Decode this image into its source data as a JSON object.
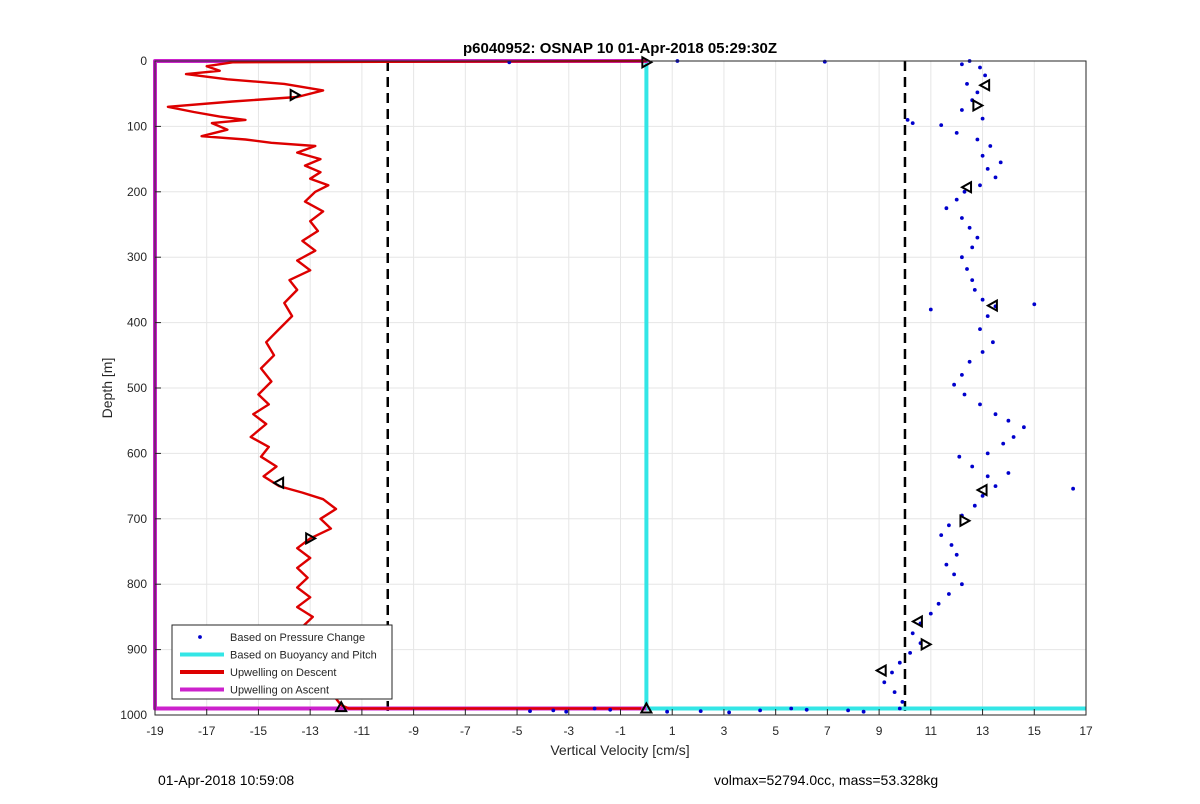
{
  "chart_data": {
    "type": "scatter",
    "title": "p6040952: OSNAP 10 01-Apr-2018 05:29:30Z",
    "xlabel": "Vertical Velocity [cm/s]",
    "ylabel": "Depth [m]",
    "xlim": [
      -19,
      17
    ],
    "ylim": [
      0,
      1000
    ],
    "y_reversed": true,
    "grid": true,
    "legend_position": "bottom-left",
    "xticks": [
      "-19",
      "-17",
      "-15",
      "-13",
      "-11",
      "-9",
      "-7",
      "-5",
      "-3",
      "-1",
      "1",
      "3",
      "5",
      "7",
      "9",
      "11",
      "13",
      "15",
      "17"
    ],
    "yticks": [
      "0",
      "100",
      "200",
      "300",
      "400",
      "500",
      "600",
      "700",
      "800",
      "900",
      "1000"
    ],
    "reference_lines": [
      {
        "x": -10,
        "style": "dashed",
        "color": "#000000"
      },
      {
        "x": 10,
        "style": "dashed",
        "color": "#000000"
      }
    ],
    "series": [
      {
        "name": "Based on Pressure Change",
        "kind": "points",
        "color": "#0000cc",
        "points": [
          [
            12.5,
            0
          ],
          [
            12.2,
            5
          ],
          [
            12.9,
            10
          ],
          [
            13.1,
            22
          ],
          [
            12.4,
            35
          ],
          [
            12.8,
            48
          ],
          [
            12.6,
            60
          ],
          [
            12.2,
            75
          ],
          [
            13.0,
            88
          ],
          [
            10.1,
            90
          ],
          [
            11.4,
            98
          ],
          [
            12.0,
            110
          ],
          [
            12.8,
            120
          ],
          [
            13.3,
            130
          ],
          [
            13.0,
            145
          ],
          [
            13.7,
            155
          ],
          [
            13.2,
            165
          ],
          [
            13.5,
            178
          ],
          [
            12.9,
            190
          ],
          [
            12.3,
            200
          ],
          [
            12.0,
            212
          ],
          [
            11.6,
            225
          ],
          [
            12.2,
            240
          ],
          [
            12.5,
            255
          ],
          [
            12.8,
            270
          ],
          [
            12.6,
            285
          ],
          [
            12.2,
            300
          ],
          [
            12.4,
            318
          ],
          [
            12.6,
            335
          ],
          [
            12.7,
            350
          ],
          [
            13.0,
            365
          ],
          [
            13.5,
            375
          ],
          [
            13.2,
            390
          ],
          [
            12.9,
            410
          ],
          [
            13.4,
            430
          ],
          [
            13.0,
            445
          ],
          [
            12.5,
            460
          ],
          [
            12.2,
            480
          ],
          [
            11.9,
            495
          ],
          [
            12.3,
            510
          ],
          [
            12.9,
            525
          ],
          [
            13.5,
            540
          ],
          [
            14.0,
            550
          ],
          [
            14.6,
            560
          ],
          [
            14.2,
            575
          ],
          [
            13.8,
            585
          ],
          [
            13.2,
            600
          ],
          [
            12.1,
            605
          ],
          [
            12.6,
            620
          ],
          [
            13.2,
            635
          ],
          [
            13.5,
            650
          ],
          [
            13.0,
            665
          ],
          [
            12.7,
            680
          ],
          [
            12.2,
            695
          ],
          [
            11.7,
            710
          ],
          [
            11.4,
            725
          ],
          [
            11.8,
            740
          ],
          [
            12.0,
            755
          ],
          [
            11.6,
            770
          ],
          [
            11.9,
            785
          ],
          [
            12.2,
            800
          ],
          [
            11.7,
            815
          ],
          [
            11.3,
            830
          ],
          [
            11.0,
            845
          ],
          [
            10.6,
            860
          ],
          [
            10.3,
            875
          ],
          [
            10.6,
            890
          ],
          [
            10.2,
            905
          ],
          [
            9.8,
            920
          ],
          [
            9.5,
            935
          ],
          [
            9.2,
            950
          ],
          [
            9.6,
            965
          ],
          [
            9.9,
            980
          ],
          [
            9.8,
            990
          ],
          [
            -5.3,
            2
          ],
          [
            6.9,
            1
          ],
          [
            1.2,
            0
          ],
          [
            -2.0,
            990
          ],
          [
            -3.1,
            995
          ],
          [
            -3.6,
            993
          ],
          [
            -1.4,
            992
          ],
          [
            0.8,
            995
          ],
          [
            2.1,
            994
          ],
          [
            3.2,
            996
          ],
          [
            4.4,
            993
          ],
          [
            5.6,
            990
          ],
          [
            6.2,
            992
          ],
          [
            7.8,
            993
          ],
          [
            8.4,
            995
          ],
          [
            -4.5,
            994
          ],
          [
            15.0,
            372
          ],
          [
            16.5,
            654
          ],
          [
            14.0,
            630
          ],
          [
            11.0,
            380
          ],
          [
            10.3,
            95
          ]
        ]
      },
      {
        "name": "Based on Buoyancy and Pitch",
        "kind": "line",
        "color": "#33e6e6",
        "points": [
          [
            0,
            0
          ],
          [
            0,
            990
          ],
          [
            17,
            990
          ]
        ]
      },
      {
        "name": "Upwelling on Descent",
        "kind": "line",
        "color": "#dd0000",
        "points": [
          [
            0,
            0
          ],
          [
            -16.0,
            2
          ],
          [
            -17.0,
            8
          ],
          [
            -16.5,
            15
          ],
          [
            -17.8,
            20
          ],
          [
            -16.2,
            28
          ],
          [
            -14.0,
            35
          ],
          [
            -12.5,
            45
          ],
          [
            -13.5,
            55
          ],
          [
            -16.0,
            62
          ],
          [
            -18.5,
            70
          ],
          [
            -17.5,
            78
          ],
          [
            -16.5,
            85
          ],
          [
            -15.5,
            90
          ],
          [
            -16.8,
            95
          ],
          [
            -16.2,
            105
          ],
          [
            -17.2,
            115
          ],
          [
            -15.5,
            120
          ],
          [
            -14.5,
            125
          ],
          [
            -12.8,
            130
          ],
          [
            -13.5,
            140
          ],
          [
            -12.6,
            150
          ],
          [
            -13.2,
            160
          ],
          [
            -12.6,
            170
          ],
          [
            -13.0,
            180
          ],
          [
            -12.3,
            190
          ],
          [
            -12.8,
            200
          ],
          [
            -13.2,
            215
          ],
          [
            -12.5,
            230
          ],
          [
            -13.0,
            245
          ],
          [
            -12.7,
            260
          ],
          [
            -13.3,
            275
          ],
          [
            -12.8,
            290
          ],
          [
            -13.5,
            305
          ],
          [
            -13.0,
            320
          ],
          [
            -13.8,
            335
          ],
          [
            -13.5,
            350
          ],
          [
            -14.0,
            370
          ],
          [
            -13.7,
            390
          ],
          [
            -14.2,
            410
          ],
          [
            -14.7,
            430
          ],
          [
            -14.4,
            450
          ],
          [
            -14.9,
            470
          ],
          [
            -14.5,
            490
          ],
          [
            -15.0,
            510
          ],
          [
            -14.6,
            525
          ],
          [
            -15.2,
            540
          ],
          [
            -14.7,
            555
          ],
          [
            -15.3,
            575
          ],
          [
            -14.6,
            590
          ],
          [
            -14.9,
            605
          ],
          [
            -14.3,
            620
          ],
          [
            -14.8,
            635
          ],
          [
            -14.2,
            650
          ],
          [
            -13.3,
            660
          ],
          [
            -12.5,
            670
          ],
          [
            -12.0,
            685
          ],
          [
            -12.6,
            700
          ],
          [
            -12.2,
            715
          ],
          [
            -13.0,
            730
          ],
          [
            -13.5,
            745
          ],
          [
            -13.0,
            760
          ],
          [
            -13.5,
            775
          ],
          [
            -13.1,
            790
          ],
          [
            -13.5,
            805
          ],
          [
            -13.0,
            820
          ],
          [
            -13.5,
            835
          ],
          [
            -12.9,
            850
          ],
          [
            -13.3,
            865
          ],
          [
            -12.8,
            880
          ],
          [
            -13.2,
            895
          ],
          [
            -12.6,
            910
          ],
          [
            -12.9,
            925
          ],
          [
            -12.2,
            940
          ],
          [
            -12.6,
            955
          ],
          [
            -12.1,
            970
          ],
          [
            -11.8,
            985
          ],
          [
            -11.5,
            990
          ],
          [
            -0.2,
            990
          ]
        ]
      },
      {
        "name": "Upwelling on Ascent",
        "kind": "line",
        "color": "#cc22cc",
        "points": [
          [
            -19,
            0
          ],
          [
            0,
            0
          ],
          [
            -19,
            0
          ],
          [
            -19,
            990
          ],
          [
            0,
            990
          ]
        ]
      }
    ],
    "markers": [
      {
        "x": 0,
        "y": 2,
        "dir": "right"
      },
      {
        "x": -13.6,
        "y": 52,
        "dir": "right"
      },
      {
        "x": 13.1,
        "y": 37,
        "dir": "left"
      },
      {
        "x": 12.8,
        "y": 68,
        "dir": "right"
      },
      {
        "x": 12.4,
        "y": 193,
        "dir": "left"
      },
      {
        "x": 13.4,
        "y": 374,
        "dir": "left"
      },
      {
        "x": -14.2,
        "y": 645,
        "dir": "left"
      },
      {
        "x": 13.0,
        "y": 656,
        "dir": "left"
      },
      {
        "x": 12.3,
        "y": 703,
        "dir": "right"
      },
      {
        "x": -13.0,
        "y": 730,
        "dir": "right"
      },
      {
        "x": 10.5,
        "y": 857,
        "dir": "left"
      },
      {
        "x": 10.8,
        "y": 892,
        "dir": "right"
      },
      {
        "x": 9.1,
        "y": 932,
        "dir": "left"
      },
      {
        "x": -11.8,
        "y": 988,
        "dir": "up"
      },
      {
        "x": 0,
        "y": 990,
        "dir": "up"
      }
    ]
  },
  "footer": {
    "left": "01-Apr-2018 10:59:08",
    "right": "volmax=52794.0cc, mass=53.328kg"
  }
}
